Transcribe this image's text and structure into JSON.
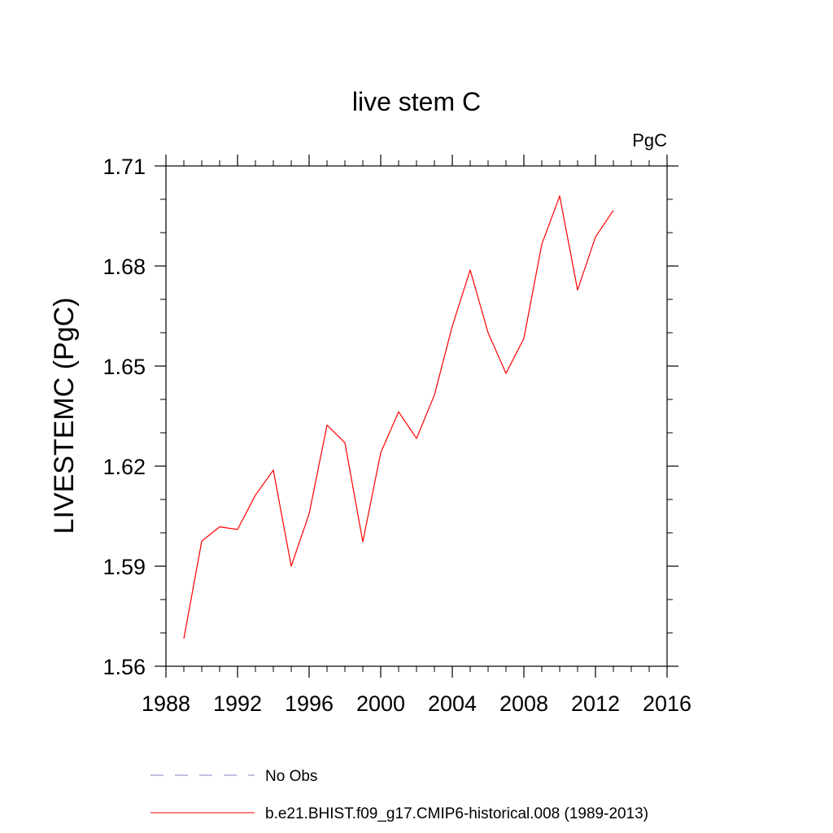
{
  "chart_data": {
    "type": "line",
    "title": "live stem C",
    "units": "PgC",
    "ylabel": "LIVESTEMC  (PgC)",
    "xlabel": "",
    "xlim": [
      1988,
      2016
    ],
    "ylim": [
      1.56,
      1.71
    ],
    "xticks": [
      1988,
      1992,
      1996,
      2000,
      2004,
      2008,
      2012,
      2016
    ],
    "yticks": [
      1.56,
      1.59,
      1.62,
      1.65,
      1.68,
      1.71
    ],
    "x_minor_step": 1,
    "y_minor_step": 0.01,
    "grid": false,
    "legend_position": "bottom",
    "series": [
      {
        "name": "b.e21.BHIST.f09_g17.CMIP6-historical.008 (1989-2013)",
        "color": "#ff0000",
        "dash": "solid",
        "x": [
          1989,
          1990,
          1991,
          1992,
          1993,
          1994,
          1995,
          1996,
          1997,
          1998,
          1999,
          2000,
          2001,
          2002,
          2003,
          2004,
          2005,
          2006,
          2007,
          2008,
          2009,
          2010,
          2011,
          2012,
          2013
        ],
        "y": [
          1.5683,
          1.5975,
          1.6018,
          1.601,
          1.6113,
          1.6188,
          1.59,
          1.6057,
          1.6323,
          1.627,
          1.5973,
          1.624,
          1.6363,
          1.6283,
          1.6413,
          1.662,
          1.6788,
          1.66,
          1.6478,
          1.6583,
          1.6865,
          1.701,
          1.6728,
          1.6887,
          1.6967
        ]
      }
    ],
    "legend": [
      {
        "label": "No Obs",
        "color": "#8080c0",
        "dash": "dashed"
      },
      {
        "label": "b.e21.BHIST.f09_g17.CMIP6-historical.008 (1989-2013)",
        "color": "#ff0000",
        "dash": "solid"
      }
    ]
  }
}
